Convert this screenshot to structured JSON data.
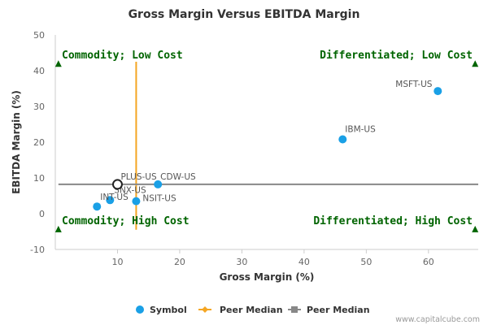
{
  "chart_data": {
    "type": "scatter",
    "title": "Gross Margin Versus EBITDA Margin",
    "xlabel": "Gross Margin (%)",
    "ylabel": "EBITDA Margin (%)",
    "xlim": [
      0,
      68
    ],
    "ylim": [
      -10,
      50
    ],
    "x_ticks": [
      10,
      20,
      30,
      40,
      50,
      60
    ],
    "y_ticks": [
      -10,
      0,
      10,
      20,
      30,
      40,
      50
    ],
    "grid": false,
    "legend_position": "bottom",
    "series": [
      {
        "name": "Symbol",
        "color": "#1aa0e6",
        "points": [
          {
            "label": "MSFT-US",
            "x": 61.5,
            "y": 34.3
          },
          {
            "label": "IBM-US",
            "x": 46.2,
            "y": 20.8
          },
          {
            "label": "CDW-US",
            "x": 16.5,
            "y": 8.2
          },
          {
            "label": "SNX-US",
            "x": 8.8,
            "y": 3.8
          },
          {
            "label": "NSIT-US",
            "x": 13.0,
            "y": 3.5
          },
          {
            "label": "INT-US",
            "x": 6.7,
            "y": 2.0
          },
          {
            "label": "PLUS-US",
            "x": 10.0,
            "y": 8.2,
            "highlighted": true
          }
        ]
      },
      {
        "name": "Peer Median",
        "color": "#f5a623",
        "orientation": "vertical",
        "value": 13.0,
        "range": [
          -4.5,
          42.5
        ]
      },
      {
        "name": "Peer Median",
        "color": "#888888",
        "orientation": "horizontal",
        "value": 8.2,
        "range": [
          0.5,
          68
        ]
      }
    ],
    "quadrants": [
      {
        "label": "Commodity; Low Cost",
        "position": "top-left",
        "marker_x": 0.5,
        "marker_y": 42
      },
      {
        "label": "Differentiated; Low Cost",
        "position": "top-right",
        "marker_x": 67.5,
        "marker_y": 42
      },
      {
        "label": "Commodity; High Cost",
        "position": "bottom-left",
        "marker_x": 0.5,
        "marker_y": -4.3
      },
      {
        "label": "Differentiated; High Cost",
        "position": "bottom-right",
        "marker_x": 67.5,
        "marker_y": -4.3
      }
    ],
    "colors": {
      "quadrant_marker": "#006400",
      "quadrant_text": "#006400",
      "highlight_ring": "#222222"
    }
  },
  "credit": "www.capitalcube.com"
}
